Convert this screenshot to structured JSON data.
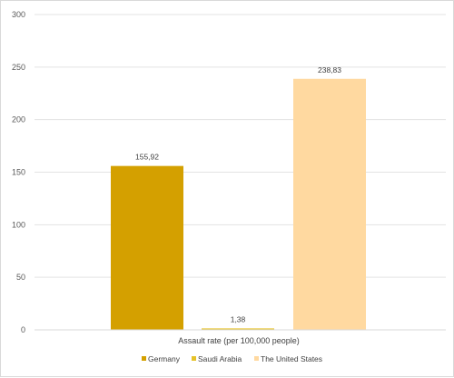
{
  "chart_data": {
    "type": "bar",
    "title": "",
    "xlabel": "Assault rate (per 100,000 people)",
    "ylabel": "",
    "ylim": [
      0,
      300
    ],
    "yticks": [
      0,
      50,
      100,
      150,
      200,
      250,
      300
    ],
    "grid": true,
    "legend_position": "bottom",
    "series": [
      {
        "name": "Germany",
        "value": 155.92,
        "label": "155,92",
        "color": "#d4a000"
      },
      {
        "name": "Saudi Arabia",
        "value": 1.38,
        "label": "1,38",
        "color": "#e6c229"
      },
      {
        "name": "The United States",
        "value": 238.83,
        "label": "238,83",
        "color": "#ffd9a0"
      }
    ]
  }
}
